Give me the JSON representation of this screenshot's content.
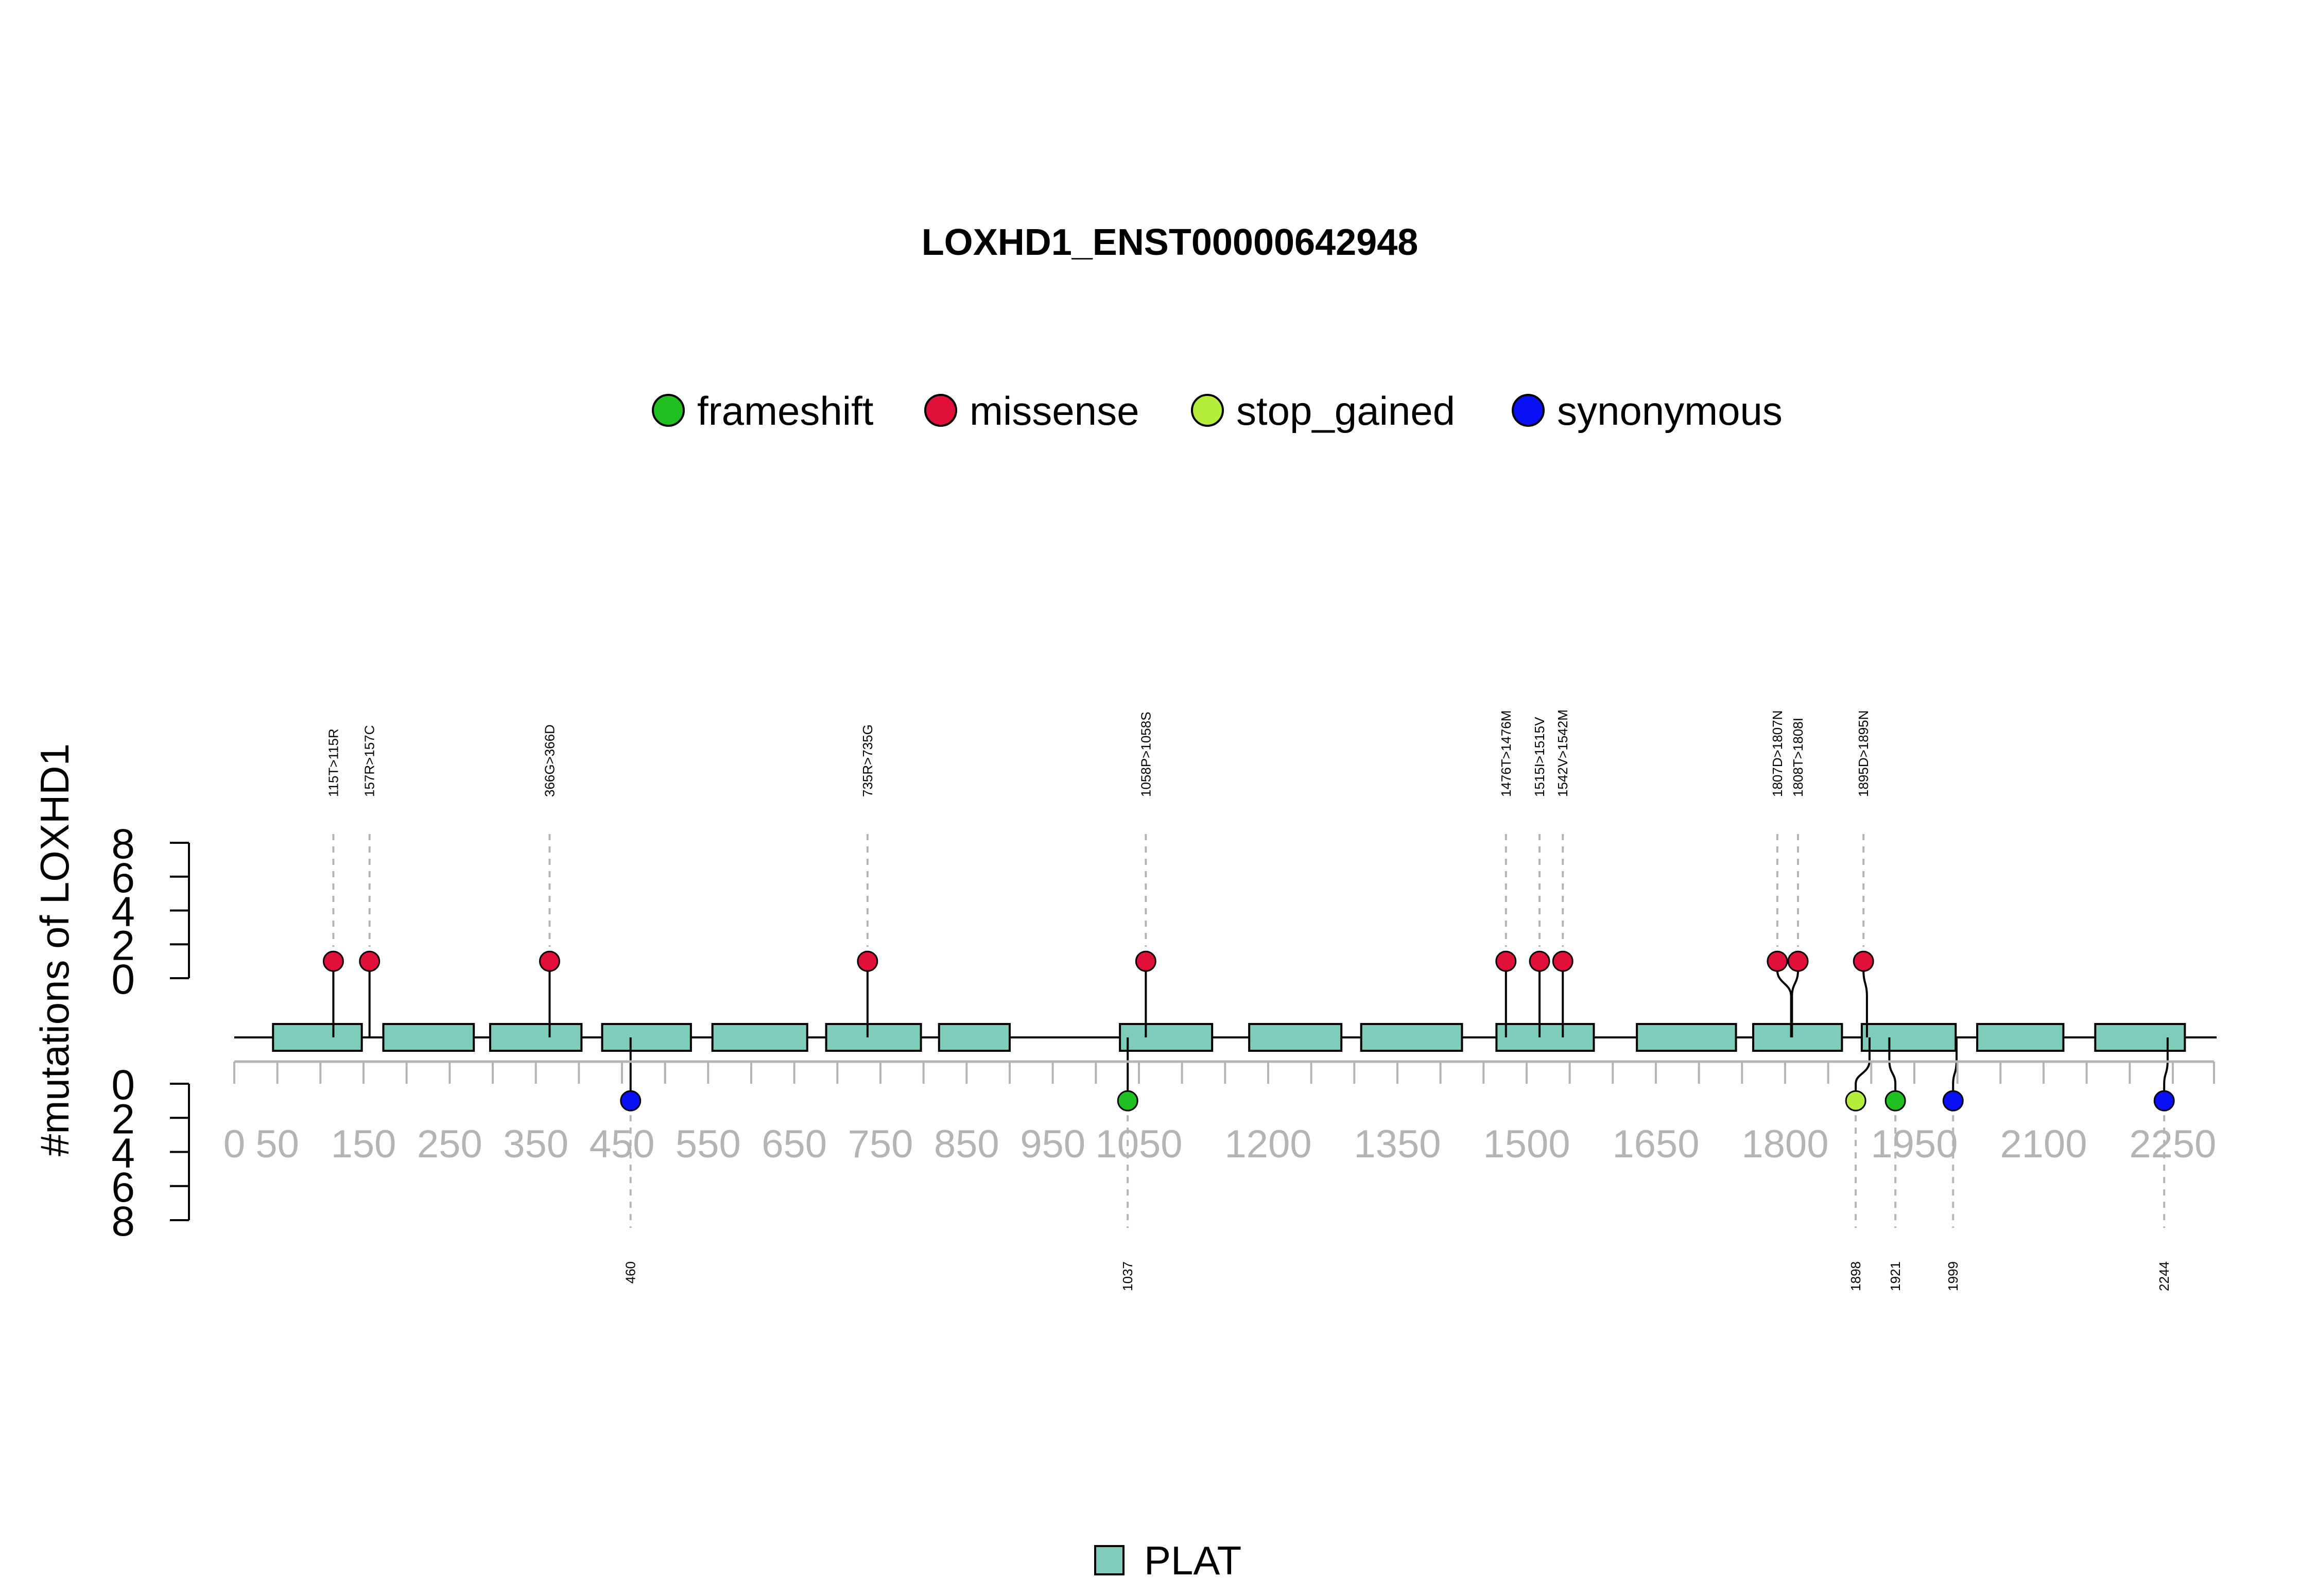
{
  "chart_data": {
    "type": "lollipop",
    "title": "LOXHD1_ENST00000642948",
    "ylabel": "#mutations of LOXHD1",
    "protein_length": 2250,
    "xlim": [
      0,
      2300
    ],
    "ylim_top": [
      0,
      8
    ],
    "ylim_bottom": [
      0,
      8
    ],
    "y_ticks": [
      "0",
      "2",
      "4",
      "6",
      "8"
    ],
    "x_ticks": [
      {
        "v": 0,
        "label": "0"
      },
      {
        "v": 50,
        "label": "50"
      },
      {
        "v": 100,
        "label": ""
      },
      {
        "v": 150,
        "label": "150"
      },
      {
        "v": 200,
        "label": ""
      },
      {
        "v": 250,
        "label": "250"
      },
      {
        "v": 300,
        "label": ""
      },
      {
        "v": 350,
        "label": "350"
      },
      {
        "v": 400,
        "label": ""
      },
      {
        "v": 450,
        "label": "450"
      },
      {
        "v": 500,
        "label": ""
      },
      {
        "v": 550,
        "label": "550"
      },
      {
        "v": 600,
        "label": ""
      },
      {
        "v": 650,
        "label": "650"
      },
      {
        "v": 700,
        "label": ""
      },
      {
        "v": 750,
        "label": "750"
      },
      {
        "v": 800,
        "label": ""
      },
      {
        "v": 850,
        "label": "850"
      },
      {
        "v": 900,
        "label": ""
      },
      {
        "v": 950,
        "label": "950"
      },
      {
        "v": 1000,
        "label": ""
      },
      {
        "v": 1050,
        "label": "1050"
      },
      {
        "v": 1100,
        "label": ""
      },
      {
        "v": 1150,
        "label": ""
      },
      {
        "v": 1200,
        "label": "1200"
      },
      {
        "v": 1250,
        "label": ""
      },
      {
        "v": 1300,
        "label": ""
      },
      {
        "v": 1350,
        "label": "1350"
      },
      {
        "v": 1400,
        "label": ""
      },
      {
        "v": 1450,
        "label": ""
      },
      {
        "v": 1500,
        "label": "1500"
      },
      {
        "v": 1550,
        "label": ""
      },
      {
        "v": 1600,
        "label": ""
      },
      {
        "v": 1650,
        "label": "1650"
      },
      {
        "v": 1700,
        "label": ""
      },
      {
        "v": 1750,
        "label": ""
      },
      {
        "v": 1800,
        "label": "1800"
      },
      {
        "v": 1850,
        "label": ""
      },
      {
        "v": 1900,
        "label": ""
      },
      {
        "v": 1950,
        "label": "1950"
      },
      {
        "v": 2000,
        "label": ""
      },
      {
        "v": 2050,
        "label": ""
      },
      {
        "v": 2100,
        "label": "2100"
      },
      {
        "v": 2150,
        "label": ""
      },
      {
        "v": 2200,
        "label": ""
      },
      {
        "v": 2250,
        "label": "2250"
      }
    ],
    "legend": [
      {
        "name": "frameshift",
        "color": "#1fc01f"
      },
      {
        "name": "missense",
        "color": "#e0103a"
      },
      {
        "name": "stop_gained",
        "color": "#b4ee3a"
      },
      {
        "name": "synonymous",
        "color": "#0a10f5"
      }
    ],
    "domain_legend": {
      "name": "PLAT",
      "color": "#7ecdbb"
    },
    "domains": [
      {
        "name": "PLAT",
        "start": 45,
        "end": 148
      },
      {
        "name": "PLAT",
        "start": 173,
        "end": 278
      },
      {
        "name": "PLAT",
        "start": 297,
        "end": 403
      },
      {
        "name": "PLAT",
        "start": 427,
        "end": 530
      },
      {
        "name": "PLAT",
        "start": 555,
        "end": 665
      },
      {
        "name": "PLAT",
        "start": 687,
        "end": 797
      },
      {
        "name": "PLAT",
        "start": 818,
        "end": 900
      },
      {
        "name": "PLAT",
        "start": 1028,
        "end": 1135
      },
      {
        "name": "PLAT",
        "start": 1178,
        "end": 1285
      },
      {
        "name": "PLAT",
        "start": 1308,
        "end": 1425
      },
      {
        "name": "PLAT",
        "start": 1465,
        "end": 1578
      },
      {
        "name": "PLAT",
        "start": 1628,
        "end": 1743
      },
      {
        "name": "PLAT",
        "start": 1763,
        "end": 1866
      },
      {
        "name": "PLAT",
        "start": 1889,
        "end": 1998
      },
      {
        "name": "PLAT",
        "start": 2023,
        "end": 2123
      },
      {
        "name": "PLAT",
        "start": 2160,
        "end": 2264
      }
    ],
    "mutations_top": [
      {
        "pos": 115,
        "label": "115T>115R",
        "type": "missense",
        "count": 1,
        "label_pos": 115
      },
      {
        "pos": 157,
        "label": "157R>157C",
        "type": "missense",
        "count": 1,
        "label_pos": 157
      },
      {
        "pos": 366,
        "label": "366G>366D",
        "type": "missense",
        "count": 1,
        "label_pos": 366
      },
      {
        "pos": 735,
        "label": "735R>735G",
        "type": "missense",
        "count": 1,
        "label_pos": 735
      },
      {
        "pos": 1058,
        "label": "1058P>1058S",
        "type": "missense",
        "count": 1,
        "label_pos": 1058
      },
      {
        "pos": 1476,
        "label": "1476T>1476M",
        "type": "missense",
        "count": 1,
        "label_pos": 1476
      },
      {
        "pos": 1515,
        "label": "1515I>1515V",
        "type": "missense",
        "count": 1,
        "label_pos": 1515
      },
      {
        "pos": 1542,
        "label": "1542V>1542M",
        "type": "missense",
        "count": 1,
        "label_pos": 1542
      },
      {
        "pos": 1807,
        "label": "1807D>1807N",
        "type": "missense",
        "count": 1,
        "label_pos": 1791
      },
      {
        "pos": 1808,
        "label": "1808T>1808I",
        "type": "missense",
        "count": 1,
        "label_pos": 1815
      },
      {
        "pos": 1895,
        "label": "1895D>1895N",
        "type": "missense",
        "count": 1,
        "label_pos": 1891
      }
    ],
    "mutations_bottom": [
      {
        "pos": 460,
        "label": "460",
        "type": "synonymous",
        "count": 1,
        "label_pos": 460
      },
      {
        "pos": 1037,
        "label": "1037",
        "type": "frameshift",
        "count": 1,
        "label_pos": 1037
      },
      {
        "pos": 1898,
        "label": "1898",
        "type": "stop_gained",
        "count": 1,
        "label_pos": 1882
      },
      {
        "pos": 1921,
        "label": "1921",
        "type": "frameshift",
        "count": 1,
        "label_pos": 1928
      },
      {
        "pos": 1999,
        "label": "1999",
        "type": "synonymous",
        "count": 1,
        "label_pos": 1995
      },
      {
        "pos": 2244,
        "label": "2244",
        "type": "synonymous",
        "count": 1,
        "label_pos": 2240
      }
    ]
  }
}
